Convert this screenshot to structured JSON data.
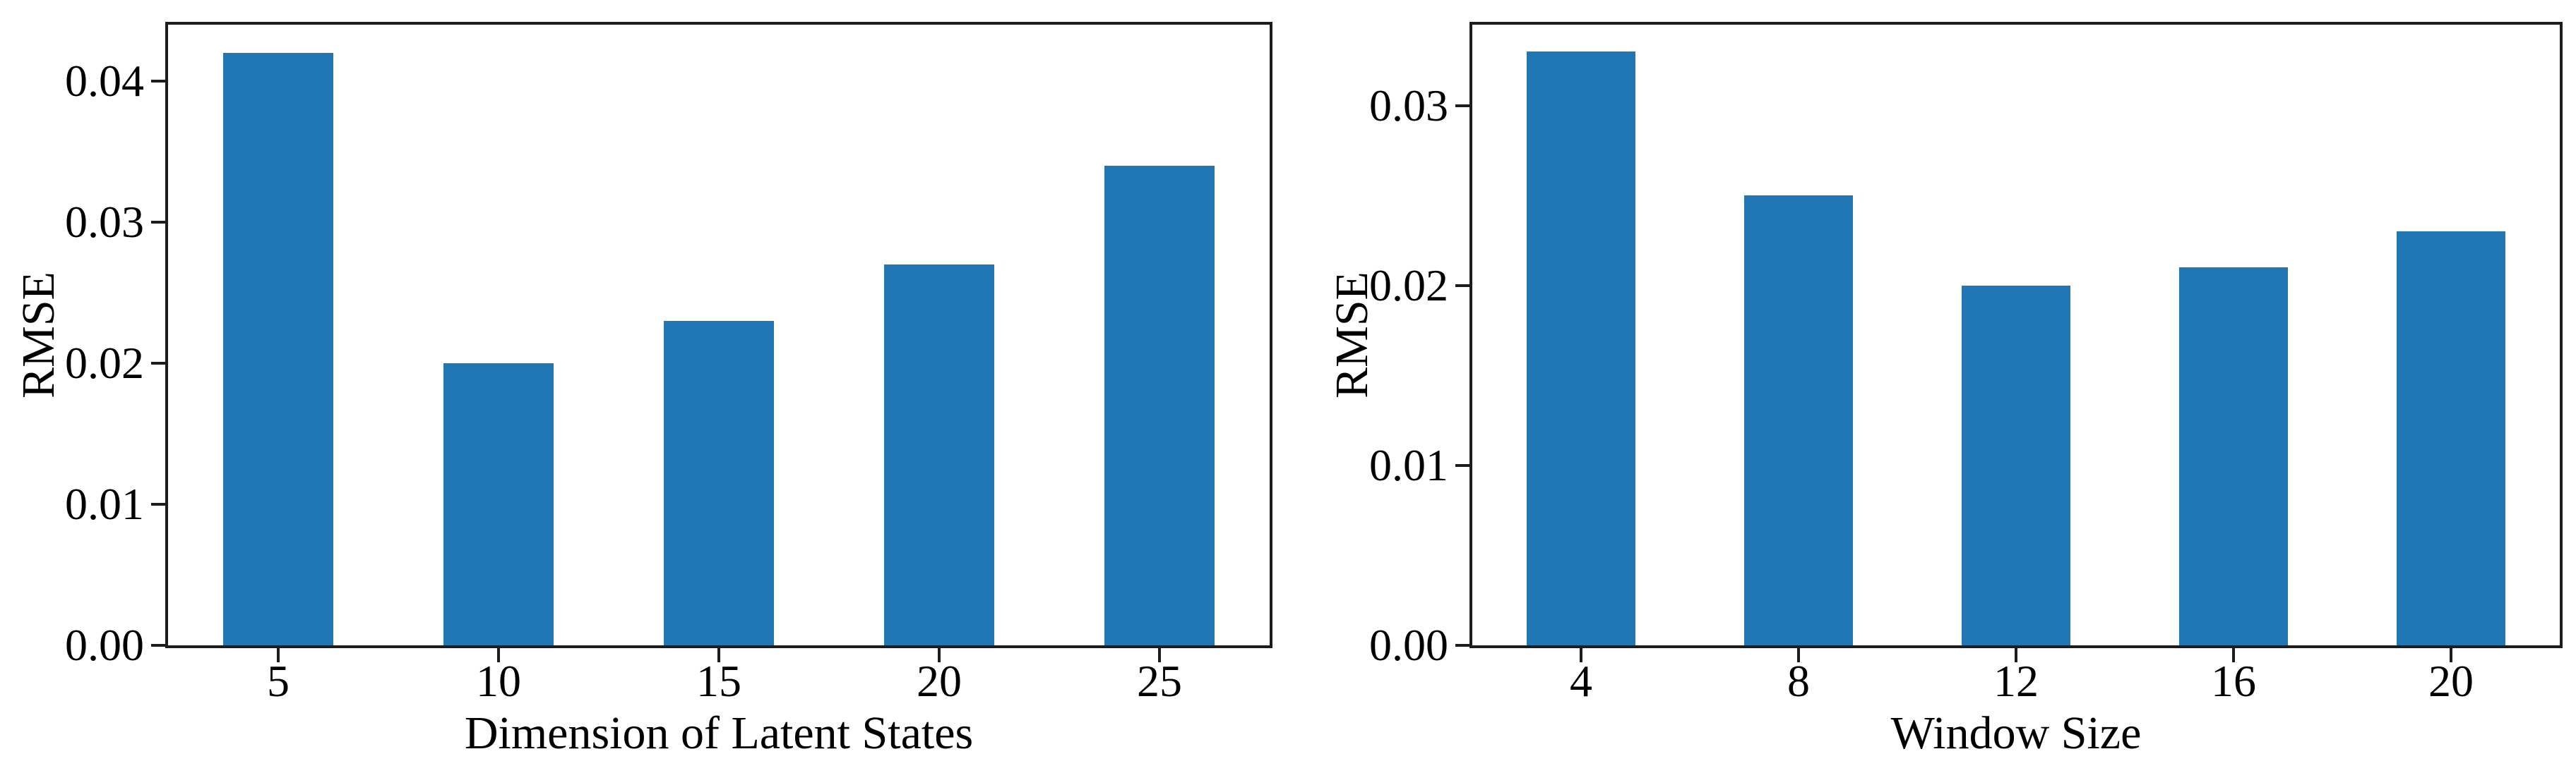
{
  "figure": {
    "background": "#ffffff",
    "text_color": "#000000",
    "spine_color": "#1c1c1c"
  },
  "chart_data": [
    {
      "type": "bar",
      "title": "",
      "categories": [
        "5",
        "10",
        "15",
        "20",
        "25"
      ],
      "values": [
        0.042,
        0.02,
        0.023,
        0.027,
        0.034
      ],
      "xlabel": "Dimension of Latent States",
      "ylabel": "RMSE",
      "ylim": [
        0,
        0.044
      ],
      "yticks": [
        0,
        0.01,
        0.02,
        0.03,
        0.04
      ],
      "ytick_labels": [
        "0.00",
        "0.01",
        "0.02",
        "0.03",
        "0.04"
      ],
      "bar_color": "#2176b4",
      "bar_width_fraction": 0.5,
      "grid": false,
      "legend": "none"
    },
    {
      "type": "bar",
      "title": "",
      "categories": [
        "4",
        "8",
        "12",
        "16",
        "20"
      ],
      "values": [
        0.033,
        0.025,
        0.02,
        0.021,
        0.023
      ],
      "xlabel": "Window Size",
      "ylabel": "RMSE",
      "ylim": [
        0,
        0.0345
      ],
      "yticks": [
        0,
        0.01,
        0.02,
        0.03
      ],
      "ytick_labels": [
        "0.00",
        "0.01",
        "0.02",
        "0.03"
      ],
      "bar_color": "#2176b4",
      "bar_width_fraction": 0.5,
      "grid": false,
      "legend": "none"
    }
  ]
}
